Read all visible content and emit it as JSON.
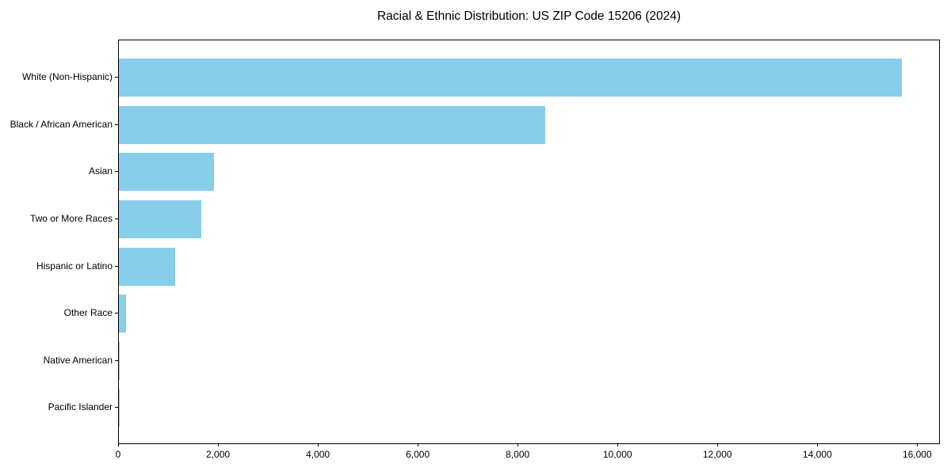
{
  "page": {
    "background_color": "#ffffff",
    "text_color": "#000000"
  },
  "chart_data": {
    "type": "bar",
    "orientation": "horizontal",
    "title": "Racial & Ethnic Distribution: US ZIP Code 15206 (2024)",
    "categories": [
      "White (Non-Hispanic)",
      "Black / African American",
      "Asian",
      "Two or More Races",
      "Hispanic or Latino",
      "Other Race",
      "Native American",
      "Pacific Islander"
    ],
    "values": [
      15670,
      8530,
      1900,
      1645,
      1120,
      135,
      20,
      8
    ],
    "xlabel": "",
    "ylabel": "",
    "xlim": [
      0,
      16455
    ],
    "xticks": [
      0,
      2000,
      4000,
      6000,
      8000,
      10000,
      12000,
      14000,
      16000
    ],
    "xtick_labels": [
      "0",
      "2,000",
      "4,000",
      "6,000",
      "8,000",
      "10,000",
      "12,000",
      "14,000",
      "16,000"
    ],
    "grid": false,
    "legend": false,
    "bar_color": "#87CEEB",
    "axis_color": "#000000",
    "text_color": "#000000"
  }
}
